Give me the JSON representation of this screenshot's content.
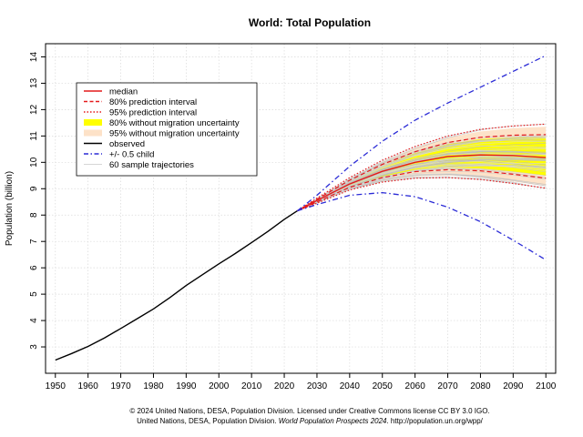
{
  "chart_data": {
    "type": "line",
    "title": "World: Total Population",
    "ylabel": "Population (billion)",
    "xlabel": "",
    "xlim": [
      1947,
      2103
    ],
    "ylim": [
      2.0,
      14.5
    ],
    "x_ticks": [
      1950,
      1960,
      1970,
      1980,
      1990,
      2000,
      2010,
      2020,
      2030,
      2040,
      2050,
      2060,
      2070,
      2080,
      2090,
      2100
    ],
    "y_ticks": [
      3,
      4,
      5,
      6,
      7,
      8,
      9,
      10,
      11,
      12,
      13,
      14
    ],
    "grid": true,
    "legend_position": "top-left",
    "legend": [
      {
        "label": "median",
        "color": "#e41a1c",
        "style": "solid"
      },
      {
        "label": "80% prediction interval",
        "color": "#e41a1c",
        "style": "dashed"
      },
      {
        "label": "95% prediction interval",
        "color": "#e41a1c",
        "style": "dotted"
      },
      {
        "label": "80% without migration uncertainty",
        "color": "#ffff00",
        "style": "band"
      },
      {
        "label": "95% without migration uncertainty",
        "color": "#fde2c8",
        "style": "band"
      },
      {
        "label": "observed",
        "color": "#000000",
        "style": "solid"
      },
      {
        "label": "+/- 0.5 child",
        "color": "#2b2bd6",
        "style": "dashdot"
      },
      {
        "label": "60 sample trajectories",
        "color": "#c8c8c8",
        "style": "thin"
      }
    ],
    "series": [
      {
        "name": "observed",
        "x": [
          1950,
          1955,
          1960,
          1965,
          1970,
          1975,
          1980,
          1985,
          1990,
          1995,
          2000,
          2005,
          2010,
          2015,
          2020,
          2024
        ],
        "y": [
          2.5,
          2.75,
          3.02,
          3.34,
          3.7,
          4.07,
          4.44,
          4.87,
          5.33,
          5.74,
          6.15,
          6.54,
          6.96,
          7.38,
          7.84,
          8.16
        ]
      },
      {
        "name": "median",
        "x": [
          2024,
          2030,
          2040,
          2050,
          2060,
          2070,
          2080,
          2090,
          2100
        ],
        "y": [
          8.16,
          8.55,
          9.18,
          9.66,
          10.0,
          10.22,
          10.28,
          10.26,
          10.18
        ]
      },
      {
        "name": "80% prediction interval upper",
        "x": [
          2024,
          2030,
          2040,
          2050,
          2060,
          2070,
          2080,
          2090,
          2100
        ],
        "y": [
          8.16,
          8.6,
          9.32,
          9.92,
          10.4,
          10.75,
          10.95,
          11.03,
          11.05
        ]
      },
      {
        "name": "80% prediction interval lower",
        "x": [
          2024,
          2030,
          2040,
          2050,
          2060,
          2070,
          2080,
          2090,
          2100
        ],
        "y": [
          8.16,
          8.5,
          9.05,
          9.42,
          9.65,
          9.72,
          9.68,
          9.55,
          9.4
        ]
      },
      {
        "name": "95% prediction interval upper",
        "x": [
          2024,
          2030,
          2040,
          2050,
          2060,
          2070,
          2080,
          2090,
          2100
        ],
        "y": [
          8.16,
          8.64,
          9.42,
          10.08,
          10.6,
          11.0,
          11.25,
          11.38,
          11.45
        ]
      },
      {
        "name": "95% prediction interval lower",
        "x": [
          2024,
          2030,
          2040,
          2050,
          2060,
          2070,
          2080,
          2090,
          2100
        ],
        "y": [
          8.16,
          8.45,
          8.95,
          9.25,
          9.4,
          9.42,
          9.35,
          9.2,
          9.02
        ]
      },
      {
        "name": "80% without migration uncertainty upper",
        "x": [
          2024,
          2030,
          2040,
          2050,
          2060,
          2070,
          2080,
          2090,
          2100
        ],
        "y": [
          8.16,
          8.59,
          9.3,
          9.88,
          10.35,
          10.68,
          10.88,
          10.95,
          10.95
        ]
      },
      {
        "name": "80% without migration uncertainty lower",
        "x": [
          2024,
          2030,
          2040,
          2050,
          2060,
          2070,
          2080,
          2090,
          2100
        ],
        "y": [
          8.16,
          8.51,
          9.07,
          9.46,
          9.7,
          9.8,
          9.77,
          9.65,
          9.5
        ]
      },
      {
        "name": "95% without migration uncertainty upper",
        "x": [
          2024,
          2030,
          2040,
          2050,
          2060,
          2070,
          2080,
          2090,
          2100
        ],
        "y": [
          8.16,
          8.63,
          9.4,
          10.04,
          10.55,
          10.93,
          11.17,
          11.3,
          11.35
        ]
      },
      {
        "name": "95% without migration uncertainty lower",
        "x": [
          2024,
          2030,
          2040,
          2050,
          2060,
          2070,
          2080,
          2090,
          2100
        ],
        "y": [
          8.16,
          8.46,
          8.97,
          9.3,
          9.47,
          9.5,
          9.43,
          9.28,
          9.1
        ]
      },
      {
        "name": "+0.5 child",
        "x": [
          2024,
          2030,
          2040,
          2050,
          2060,
          2070,
          2080,
          2090,
          2100
        ],
        "y": [
          8.16,
          8.75,
          9.85,
          10.8,
          11.6,
          12.25,
          12.85,
          13.45,
          14.05
        ]
      },
      {
        "name": "-0.5 child",
        "x": [
          2024,
          2030,
          2040,
          2050,
          2060,
          2070,
          2080,
          2090,
          2100
        ],
        "y": [
          8.16,
          8.4,
          8.75,
          8.85,
          8.7,
          8.3,
          7.75,
          7.05,
          6.3
        ]
      }
    ]
  },
  "credits": {
    "line1": "© 2024 United Nations, DESA, Population Division. Licensed under Creative Commons license CC BY 3.0 IGO.",
    "line2_prefix": "United Nations, DESA, Population Division. ",
    "line2_italic": "World Population Prospects 2024",
    "line2_suffix": ". http://population.un.org/wpp/"
  }
}
